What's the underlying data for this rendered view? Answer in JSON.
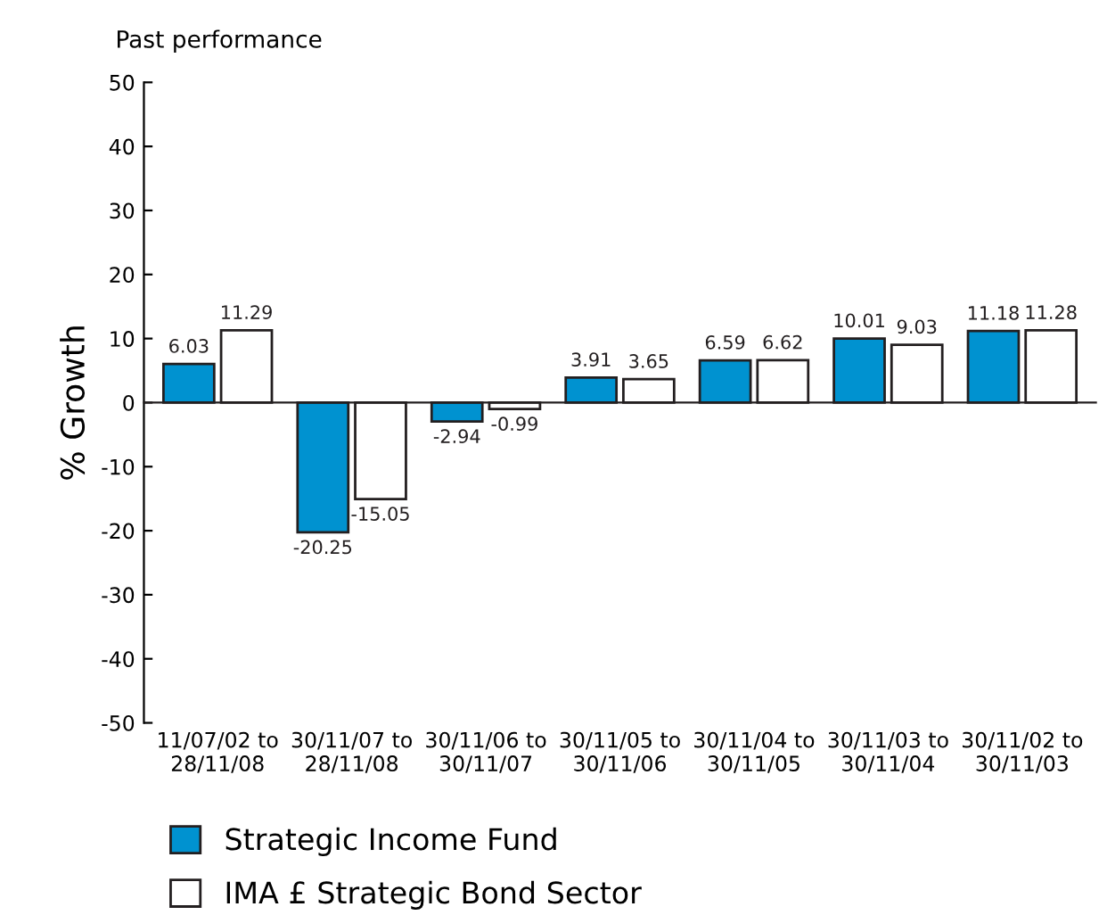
{
  "chart_data": {
    "type": "bar",
    "title": "Past performance",
    "ylabel": "% Growth",
    "categories": [
      "11/07/02 to\n28/11/08",
      "30/11/07 to\n28/11/08",
      "30/11/06 to\n30/11/07",
      "30/11/05 to\n30/11/06",
      "30/11/04 to\n30/11/05",
      "30/11/03 to\n30/11/04",
      "30/11/02 to\n30/11/03"
    ],
    "series": [
      {
        "name": "Strategic Income Fund",
        "color": "#0092d0",
        "values": [
          6.03,
          -20.25,
          -2.94,
          3.91,
          6.59,
          10.01,
          11.18
        ]
      },
      {
        "name": "IMA £ Strategic Bond Sector",
        "color": "#ffffff",
        "values": [
          11.29,
          -15.05,
          -0.99,
          3.65,
          6.62,
          9.03,
          11.28
        ]
      }
    ],
    "ylim": [
      -50,
      50
    ],
    "yticks": [
      -50,
      -40,
      -30,
      -20,
      -10,
      0,
      10,
      20,
      30,
      40,
      50
    ],
    "data_labels": true,
    "legend": "bottom"
  }
}
